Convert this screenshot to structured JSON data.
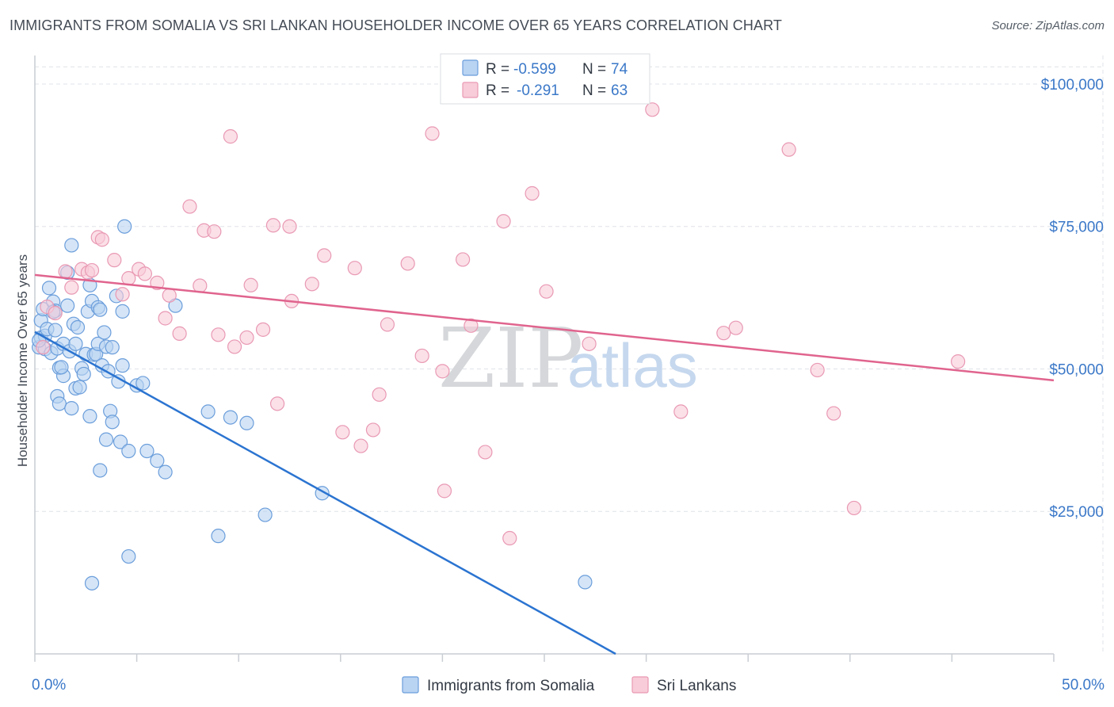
{
  "header": {
    "title": "IMMIGRANTS FROM SOMALIA VS SRI LANKAN HOUSEHOLDER INCOME OVER 65 YEARS CORRELATION CHART",
    "source": "Source: ZipAtlas.com"
  },
  "watermark": {
    "part1": "ZIP",
    "part2": "atlas"
  },
  "colors": {
    "somalia_fill": "#b9d3f2",
    "somalia_stroke": "#6b9edb",
    "somalia_line": "#2b74d1",
    "srilanka_fill": "#f8ccd9",
    "srilanka_stroke": "#e999b3",
    "srilanka_line": "#e0648e",
    "accent_text": "#3b78c8",
    "grid": "#dfe3e8"
  },
  "chart_data": {
    "type": "scatter",
    "title": "IMMIGRANTS FROM SOMALIA VS SRI LANKAN HOUSEHOLDER INCOME OVER 65 YEARS CORRELATION CHART",
    "xlabel": "",
    "ylabel": "Householder Income Over 65 years",
    "xlim": [
      0,
      50
    ],
    "ylim": [
      0,
      105000
    ],
    "x_tick_labels": [
      "0.0%",
      "50.0%"
    ],
    "y_ticks": [
      {
        "value": 100000,
        "label": "$100,000"
      },
      {
        "value": 75000,
        "label": "$75,000"
      },
      {
        "value": 50000,
        "label": "$50,000"
      },
      {
        "value": 25000,
        "label": "$25,000"
      }
    ],
    "legend": [
      {
        "r_label": "R =",
        "r_value": "-0.599",
        "n_label": "N =",
        "n_value": "74"
      },
      {
        "r_label": "R =",
        "r_value": "-0.291",
        "n_label": "N =",
        "n_value": "63"
      }
    ],
    "series": [
      {
        "name": "Immigrants from Somalia",
        "trend": {
          "x": [
            0,
            28.5
          ],
          "y": [
            56500,
            0
          ]
        },
        "points": [
          [
            0.2,
            53800
          ],
          [
            0.3,
            55500
          ],
          [
            0.3,
            58500
          ],
          [
            0.4,
            60500
          ],
          [
            0.5,
            55800
          ],
          [
            0.5,
            53500
          ],
          [
            0.6,
            57000
          ],
          [
            0.7,
            64200
          ],
          [
            0.8,
            52800
          ],
          [
            0.9,
            61800
          ],
          [
            1.0,
            60200
          ],
          [
            1.0,
            56800
          ],
          [
            1.1,
            45200
          ],
          [
            1.1,
            53600
          ],
          [
            1.2,
            50200
          ],
          [
            1.2,
            43900
          ],
          [
            1.4,
            48800
          ],
          [
            1.4,
            54400
          ],
          [
            1.6,
            66900
          ],
          [
            1.6,
            61100
          ],
          [
            1.7,
            53100
          ],
          [
            1.8,
            71700
          ],
          [
            1.8,
            43100
          ],
          [
            1.9,
            57900
          ],
          [
            2.0,
            54400
          ],
          [
            2.0,
            46600
          ],
          [
            2.1,
            57300
          ],
          [
            2.2,
            46800
          ],
          [
            2.3,
            50100
          ],
          [
            2.4,
            49100
          ],
          [
            2.5,
            52600
          ],
          [
            2.6,
            60100
          ],
          [
            2.7,
            64700
          ],
          [
            2.7,
            41700
          ],
          [
            2.8,
            61900
          ],
          [
            2.9,
            52500
          ],
          [
            3.0,
            52600
          ],
          [
            3.1,
            54400
          ],
          [
            3.1,
            60800
          ],
          [
            3.2,
            32200
          ],
          [
            3.2,
            60400
          ],
          [
            3.3,
            50600
          ],
          [
            3.4,
            56400
          ],
          [
            3.5,
            53900
          ],
          [
            3.5,
            37600
          ],
          [
            3.6,
            49600
          ],
          [
            3.7,
            42600
          ],
          [
            3.8,
            53800
          ],
          [
            3.8,
            40700
          ],
          [
            4.0,
            62800
          ],
          [
            4.1,
            47800
          ],
          [
            4.2,
            37200
          ],
          [
            4.3,
            50600
          ],
          [
            4.3,
            60100
          ],
          [
            4.4,
            75000
          ],
          [
            4.6,
            17100
          ],
          [
            4.6,
            35600
          ],
          [
            5.0,
            47100
          ],
          [
            5.3,
            47500
          ],
          [
            5.5,
            35600
          ],
          [
            6.0,
            33900
          ],
          [
            6.4,
            31900
          ],
          [
            6.9,
            61100
          ],
          [
            8.5,
            42500
          ],
          [
            9.0,
            20700
          ],
          [
            9.6,
            41500
          ],
          [
            10.4,
            40500
          ],
          [
            11.3,
            24400
          ],
          [
            14.1,
            28200
          ],
          [
            27.0,
            12600
          ],
          [
            2.8,
            12400
          ],
          [
            0.2,
            55000
          ],
          [
            1.3,
            50300
          ],
          [
            0.9,
            60000
          ]
        ]
      },
      {
        "name": "Sri Lankans",
        "trend": {
          "x": [
            0,
            50
          ],
          "y": [
            66500,
            48000
          ]
        },
        "points": [
          [
            0.4,
            53800
          ],
          [
            0.6,
            60900
          ],
          [
            1.0,
            59800
          ],
          [
            1.5,
            67100
          ],
          [
            1.8,
            64300
          ],
          [
            2.3,
            67500
          ],
          [
            2.6,
            66900
          ],
          [
            2.8,
            67300
          ],
          [
            3.1,
            73100
          ],
          [
            3.3,
            72700
          ],
          [
            3.9,
            69100
          ],
          [
            4.3,
            63100
          ],
          [
            4.6,
            65900
          ],
          [
            5.1,
            67500
          ],
          [
            5.4,
            66700
          ],
          [
            6.0,
            65100
          ],
          [
            6.6,
            62900
          ],
          [
            6.4,
            58900
          ],
          [
            7.1,
            56200
          ],
          [
            7.6,
            78500
          ],
          [
            8.1,
            64600
          ],
          [
            8.3,
            74300
          ],
          [
            8.8,
            74100
          ],
          [
            9.0,
            56000
          ],
          [
            9.6,
            90800
          ],
          [
            9.8,
            53900
          ],
          [
            10.4,
            55500
          ],
          [
            10.6,
            64700
          ],
          [
            11.2,
            56900
          ],
          [
            11.7,
            75200
          ],
          [
            11.9,
            43900
          ],
          [
            12.5,
            75000
          ],
          [
            12.6,
            61900
          ],
          [
            13.6,
            64900
          ],
          [
            14.2,
            69900
          ],
          [
            15.1,
            38900
          ],
          [
            15.7,
            67700
          ],
          [
            16.0,
            36500
          ],
          [
            16.6,
            39300
          ],
          [
            16.9,
            45500
          ],
          [
            17.3,
            57800
          ],
          [
            18.3,
            68500
          ],
          [
            19.0,
            52300
          ],
          [
            19.5,
            91300
          ],
          [
            20.0,
            49600
          ],
          [
            20.1,
            28600
          ],
          [
            21.0,
            69200
          ],
          [
            21.4,
            57600
          ],
          [
            22.1,
            35400
          ],
          [
            23.0,
            75900
          ],
          [
            23.3,
            20300
          ],
          [
            24.4,
            80800
          ],
          [
            25.1,
            63600
          ],
          [
            27.2,
            54400
          ],
          [
            30.3,
            95500
          ],
          [
            31.7,
            42500
          ],
          [
            33.8,
            56300
          ],
          [
            34.4,
            57200
          ],
          [
            37.0,
            88500
          ],
          [
            38.4,
            49800
          ],
          [
            39.2,
            42200
          ],
          [
            40.2,
            25600
          ],
          [
            45.3,
            51300
          ]
        ]
      }
    ]
  }
}
